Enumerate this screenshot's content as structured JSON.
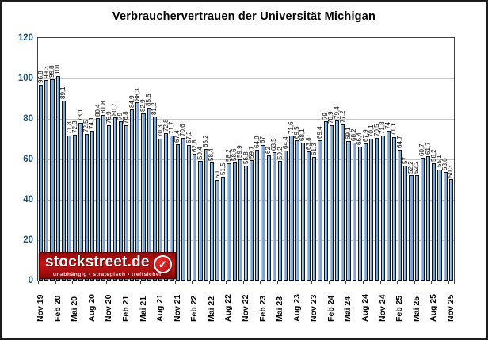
{
  "title": "Verbrauchervertrauen der Universität Michigan",
  "logo": {
    "brand": "stockstreet.de",
    "tagline": "unabhängig • strategisch • treffsicher",
    "check_icon": "checkmark-in-red-circle",
    "bg_color": "#b01010"
  },
  "chart_data": {
    "type": "bar",
    "title": "Verbrauchervertrauen der Universität Michigan",
    "xlabel": "",
    "ylabel": "",
    "ylim": [
      0,
      120
    ],
    "ytick_step": 20,
    "y_tick_labels": [
      "0",
      "20",
      "40",
      "60",
      "80",
      "100",
      "120"
    ],
    "grid": true,
    "legend": "none",
    "tick_every": 3,
    "x_tick_labels": [
      "Nov 19",
      "Feb 20",
      "Mai 20",
      "Aug 20",
      "Nov 20",
      "Feb 21",
      "Mai 21",
      "Aug 21",
      "Nov 21",
      "Feb 22",
      "Mai 22",
      "Aug 22",
      "Nov 22",
      "Feb 23",
      "Mai 23",
      "Aug 23",
      "Nov 23",
      "Feb 24",
      "Mai 24",
      "Aug 24",
      "Nov 24",
      "Feb 25",
      "Mai 25",
      "Aug 25",
      "Nov 25"
    ],
    "values": [
      96.8,
      99.3,
      99.8,
      101,
      89.1,
      71.8,
      72.3,
      78.1,
      72.5,
      74.1,
      80.4,
      81.8,
      76.9,
      80.7,
      79,
      76.8,
      84.9,
      88.3,
      82.9,
      85.5,
      81.2,
      70.3,
      72.8,
      71.7,
      67.4,
      70.6,
      67.2,
      62.8,
      59.4,
      65.2,
      58.4,
      50,
      51.5,
      58.2,
      58.6,
      59.9,
      56.8,
      59.7,
      64.9,
      67,
      62,
      63.5,
      59.2,
      64.4,
      71.6,
      69.5,
      68.1,
      63.8,
      61.3,
      69.4,
      79,
      76.9,
      79.4,
      77.2,
      69.1,
      68.2,
      66.4,
      67.9,
      70.1,
      70.5,
      71.8,
      74,
      71.1,
      64.7,
      57,
      52.2,
      52.2,
      60.7,
      61.7,
      58.2,
      55.1,
      53.6,
      50.3
    ],
    "value_labels": [
      "96,8",
      "99,3",
      "99,8",
      "101",
      "89,1",
      "71,8",
      "72,3",
      "78,1",
      "72,5",
      "74,1",
      "80,4",
      "81,8",
      "76,9",
      "80,7",
      "79",
      "76,8",
      "84,9",
      "88,3",
      "82,9",
      "85,5",
      "81,2",
      "70,3",
      "72,8",
      "71,7",
      "67,4",
      "70,6",
      "67,2",
      "62,8",
      "59,4",
      "65,2",
      "58,4",
      "50",
      "51,5",
      "58,2",
      "58,6",
      "59,9",
      "56,8",
      "59,7",
      "64,9",
      "67",
      "62",
      "63,5",
      "59,2",
      "64,4",
      "71,6",
      "69,5",
      "68,1",
      "63,8",
      "61,3",
      "69,4",
      "79",
      "76,9",
      "79,4",
      "77,2",
      "69,1",
      "68,2",
      "66,4",
      "67,9",
      "70,1",
      "70,5",
      "71,8",
      "74",
      "71,1",
      "64,7",
      "57",
      "52,2",
      "52,2",
      "60,7",
      "61,7",
      "58,2",
      "55,1",
      "53,6",
      "50,3"
    ],
    "bar_fill": "#7fa8d6",
    "bar_border": "#141414",
    "gridline_color": "#c6c6c6",
    "y_label_color": "#1F4E79"
  }
}
